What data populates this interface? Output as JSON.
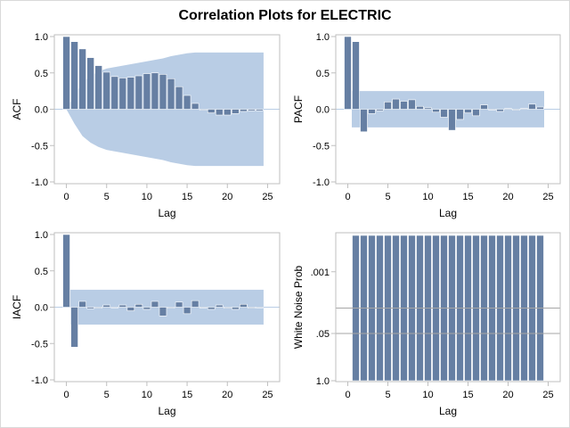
{
  "title": "Correlation Plots for ELECTRIC",
  "colors": {
    "bar": "#667fa3",
    "band": "#b9cde5",
    "zero_line": "#b9cde5",
    "ref_line": "#a6a6a6",
    "frame": "#bfbfbf"
  },
  "chart_data": [
    {
      "id": "acf",
      "type": "bar",
      "title": "",
      "xlabel": "Lag",
      "ylabel": "ACF",
      "xlim": [
        -1.5,
        26.5
      ],
      "ylim": [
        -1.0,
        1.0
      ],
      "xticks": [
        0,
        5,
        10,
        15,
        20,
        25
      ],
      "yticks": [
        -1.0,
        -0.5,
        0.0,
        0.5,
        1.0
      ],
      "ytick_labels": [
        "-1.0",
        "-0.5",
        "0.0",
        "0.5",
        "1.0"
      ],
      "x": [
        0,
        1,
        2,
        3,
        4,
        5,
        6,
        7,
        8,
        9,
        10,
        11,
        12,
        13,
        14,
        15,
        16,
        17,
        18,
        19,
        20,
        21,
        22,
        23,
        24
      ],
      "values": [
        1.0,
        0.93,
        0.83,
        0.71,
        0.6,
        0.51,
        0.45,
        0.43,
        0.44,
        0.46,
        0.49,
        0.5,
        0.48,
        0.42,
        0.31,
        0.19,
        0.08,
        0.0,
        -0.05,
        -0.08,
        -0.08,
        -0.06,
        -0.03,
        -0.02,
        -0.02
      ],
      "band_upper": [
        0.0,
        0.2,
        0.37,
        0.46,
        0.52,
        0.56,
        0.58,
        0.6,
        0.62,
        0.64,
        0.66,
        0.68,
        0.7,
        0.73,
        0.75,
        0.77,
        0.78,
        0.78,
        0.78,
        0.78,
        0.78,
        0.78,
        0.78,
        0.78,
        0.78
      ],
      "band_lower": [
        0.0,
        -0.2,
        -0.37,
        -0.46,
        -0.52,
        -0.56,
        -0.58,
        -0.6,
        -0.62,
        -0.64,
        -0.66,
        -0.68,
        -0.7,
        -0.73,
        -0.75,
        -0.77,
        -0.78,
        -0.78,
        -0.78,
        -0.78,
        -0.78,
        -0.78,
        -0.78,
        -0.78,
        -0.78
      ]
    },
    {
      "id": "pacf",
      "type": "bar",
      "title": "",
      "xlabel": "Lag",
      "ylabel": "PACF",
      "xlim": [
        -1.5,
        26.5
      ],
      "ylim": [
        -1.0,
        1.0
      ],
      "xticks": [
        0,
        5,
        10,
        15,
        20,
        25
      ],
      "yticks": [
        -1.0,
        -0.5,
        0.0,
        0.5,
        1.0
      ],
      "ytick_labels": [
        "-1.0",
        "-0.5",
        "0.0",
        "0.5",
        "1.0"
      ],
      "x": [
        0,
        1,
        2,
        3,
        4,
        5,
        6,
        7,
        8,
        9,
        10,
        11,
        12,
        13,
        14,
        15,
        16,
        17,
        18,
        19,
        20,
        21,
        22,
        23,
        24
      ],
      "values": [
        1.0,
        0.93,
        -0.31,
        -0.06,
        -0.02,
        0.1,
        0.14,
        0.11,
        0.13,
        0.04,
        0.02,
        -0.04,
        -0.11,
        -0.29,
        -0.14,
        -0.05,
        -0.09,
        0.06,
        -0.01,
        -0.03,
        0.01,
        0.0,
        0.01,
        0.07,
        0.03
      ],
      "band_range": [
        1,
        24
      ],
      "band_limit": 0.25
    },
    {
      "id": "iacf",
      "type": "bar",
      "title": "",
      "xlabel": "Lag",
      "ylabel": "IACF",
      "xlim": [
        -1.5,
        26.5
      ],
      "ylim": [
        -1.0,
        1.0
      ],
      "xticks": [
        0,
        5,
        10,
        15,
        20,
        25
      ],
      "yticks": [
        -1.0,
        -0.5,
        0.0,
        0.5,
        1.0
      ],
      "ytick_labels": [
        "-1.0",
        "-0.5",
        "0.0",
        "0.5",
        "1.0"
      ],
      "x": [
        0,
        1,
        2,
        3,
        4,
        5,
        6,
        7,
        8,
        9,
        10,
        11,
        12,
        13,
        14,
        15,
        16,
        17,
        18,
        19,
        20,
        21,
        22,
        23,
        24
      ],
      "values": [
        1.0,
        -0.55,
        0.08,
        -0.02,
        0.0,
        0.03,
        -0.01,
        0.03,
        -0.05,
        0.04,
        -0.03,
        0.08,
        -0.12,
        0.0,
        0.07,
        -0.09,
        0.09,
        -0.01,
        -0.03,
        0.03,
        0.0,
        -0.03,
        0.04,
        0.0,
        -0.01
      ],
      "band_range": [
        1,
        24
      ],
      "band_limit": 0.24
    },
    {
      "id": "whitenoise",
      "type": "bar",
      "title": "",
      "xlabel": "Lag",
      "ylabel": "White Noise Prob",
      "xlim": [
        -1.5,
        26.5
      ],
      "y_scale": "log-probability (inverted)",
      "xticks": [
        0,
        5,
        10,
        15,
        20,
        25
      ],
      "yticks": [
        0.001,
        0.05,
        1.0
      ],
      "ytick_labels": [
        ".001",
        ".05",
        "1.0"
      ],
      "reference_lines": [
        0.01,
        0.05
      ],
      "x": [
        1,
        2,
        3,
        4,
        5,
        6,
        7,
        8,
        9,
        10,
        11,
        12,
        13,
        14,
        15,
        16,
        17,
        18,
        19,
        20,
        21,
        22,
        23,
        24
      ],
      "values": [
        0.0001,
        0.0001,
        0.0001,
        0.0001,
        0.0001,
        0.0001,
        0.0001,
        0.0001,
        0.0001,
        0.0001,
        0.0001,
        0.0001,
        0.0001,
        0.0001,
        0.0001,
        0.0001,
        0.0001,
        0.0001,
        0.0001,
        0.0001,
        0.0001,
        0.0001,
        0.0001,
        0.0001
      ]
    }
  ]
}
